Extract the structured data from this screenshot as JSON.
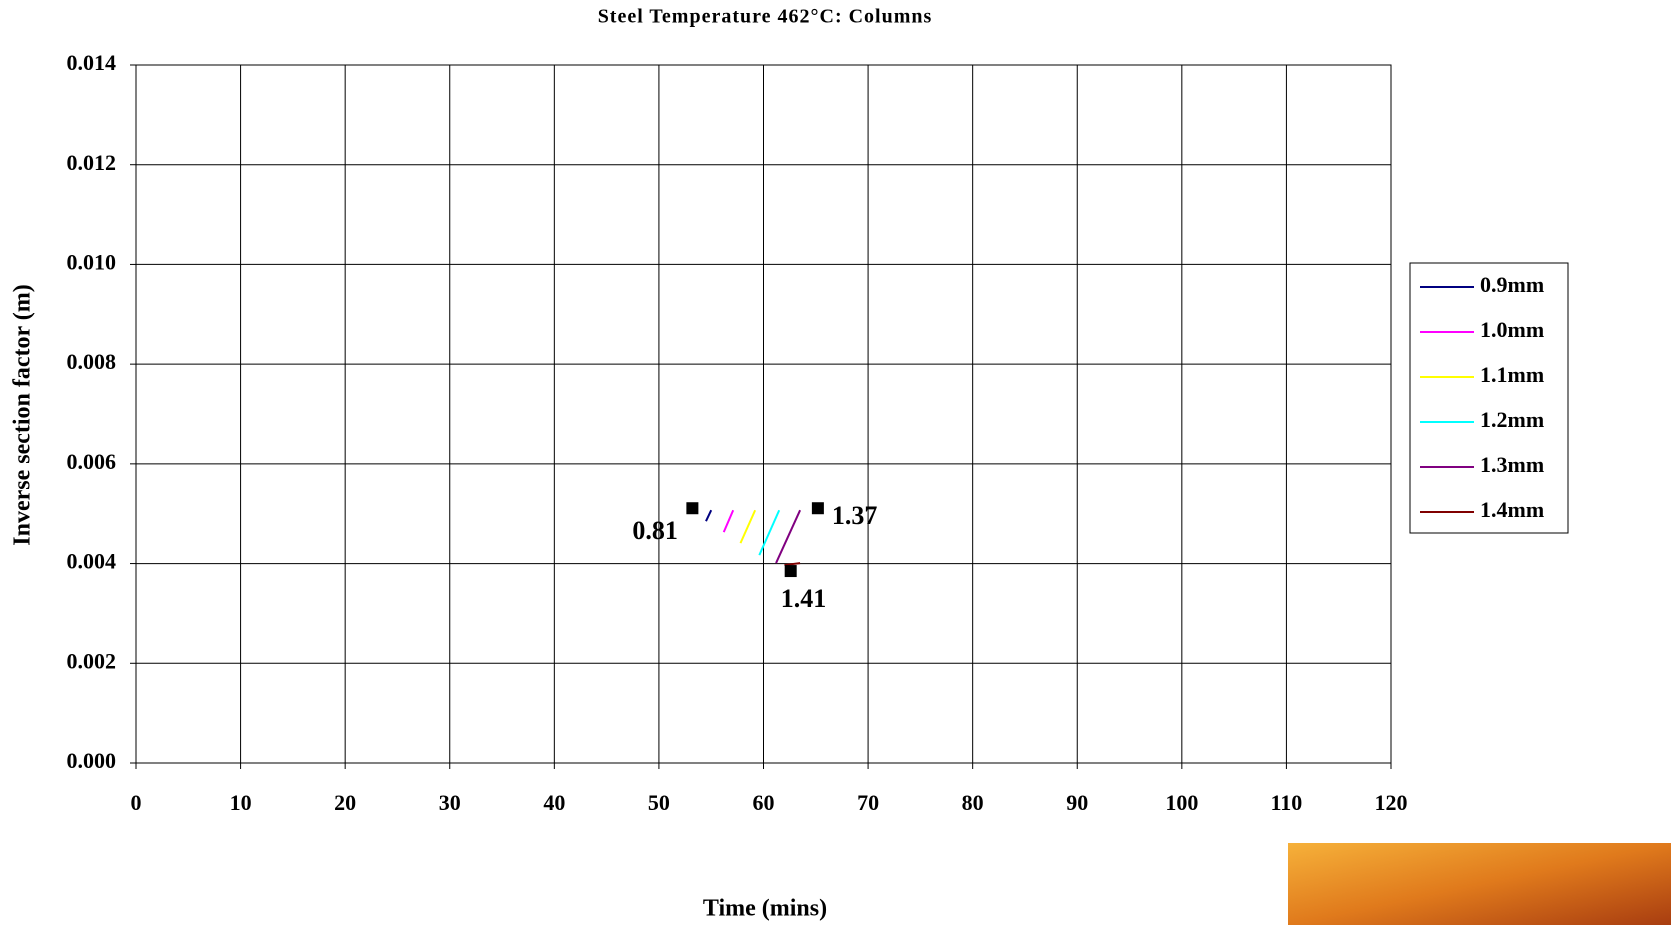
{
  "chart_data": {
    "type": "line",
    "title": "Steel Temperature 462°C: Columns",
    "x_label": "Time (mins)",
    "y_label": "Inverse section factor (m)",
    "xlim": [
      0,
      120
    ],
    "xticks": [
      0,
      10,
      20,
      30,
      40,
      50,
      60,
      70,
      80,
      90,
      100,
      110,
      120
    ],
    "ylim": [
      0,
      0.014
    ],
    "yticks": [
      {
        "value": 0,
        "label": "0.000"
      },
      {
        "value": 0.002,
        "label": "0.002"
      },
      {
        "value": 0.004,
        "label": "0.004"
      },
      {
        "value": 0.006,
        "label": "0.006"
      },
      {
        "value": 0.008,
        "label": "0.008"
      },
      {
        "value": 0.01,
        "label": "0.010"
      },
      {
        "value": 0.012,
        "label": "0.012"
      },
      {
        "value": 0.014,
        "label": "0.014"
      }
    ],
    "grid": true,
    "legend": "right",
    "series": [
      {
        "name": "0.9mm",
        "color": "#000080",
        "x": [
          54.5,
          55.0
        ],
        "values": [
          0.00485,
          0.00507
        ]
      },
      {
        "name": "1.0mm",
        "color": "#ff00ff",
        "x": [
          56.2,
          57.1
        ],
        "values": [
          0.00463,
          0.00507
        ]
      },
      {
        "name": "1.1mm",
        "color": "#ffff00",
        "x": [
          57.8,
          59.2
        ],
        "values": [
          0.00441,
          0.00507
        ]
      },
      {
        "name": "1.2mm",
        "color": "#00ffff",
        "x": [
          59.6,
          61.5
        ],
        "values": [
          0.00417,
          0.00507
        ]
      },
      {
        "name": "1.3mm",
        "color": "#800080",
        "x": [
          61.2,
          63.5
        ],
        "values": [
          0.00401,
          0.00507
        ]
      },
      {
        "name": "1.4mm",
        "color": "#800000",
        "x": [
          62.0,
          63.5
        ],
        "values": [
          0.00397,
          0.00401
        ]
      }
    ],
    "annotations": [
      {
        "x": 53.2,
        "y": 0.00511,
        "text": "0.81"
      },
      {
        "x": 65.2,
        "y": 0.00511,
        "text": "1.37"
      },
      {
        "x": 62.6,
        "y": 0.00385,
        "text": "1.41"
      }
    ]
  }
}
